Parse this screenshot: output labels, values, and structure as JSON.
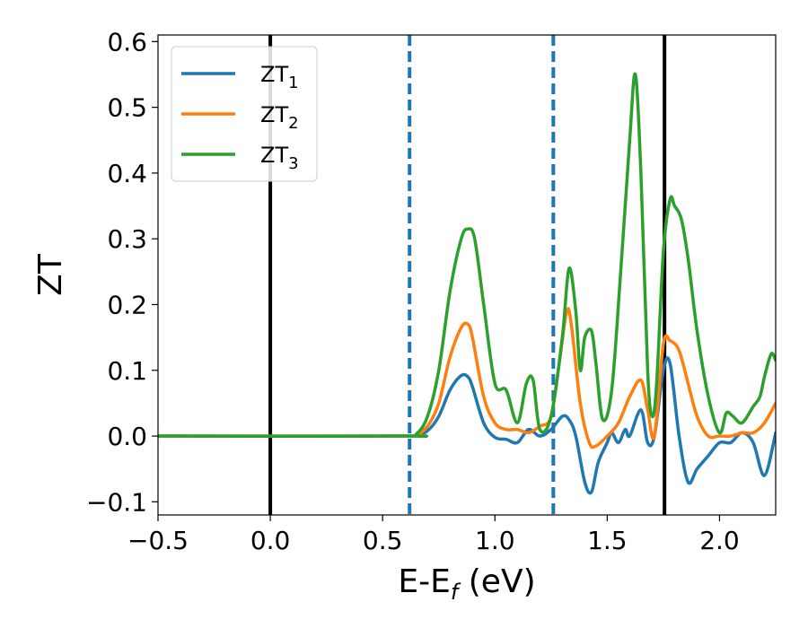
{
  "chart_data": {
    "type": "line",
    "title": "",
    "xlabel": "E-E",
    "xlabel_sub": "f",
    "xlabel_unit": " (eV)",
    "ylabel": "ZT",
    "xlim": [
      -0.5,
      2.25
    ],
    "ylim": [
      -0.12,
      0.61
    ],
    "xticks": [
      -0.5,
      0.0,
      0.5,
      1.0,
      1.5,
      2.0
    ],
    "xtick_labels": [
      "−0.5",
      "0.0",
      "0.5",
      "1.0",
      "1.5",
      "2.0"
    ],
    "yticks": [
      -0.1,
      0.0,
      0.1,
      0.2,
      0.3,
      0.4,
      0.5,
      0.6
    ],
    "ytick_labels": [
      "−0.1",
      "0.0",
      "0.1",
      "0.2",
      "0.3",
      "0.4",
      "0.5",
      "0.6"
    ],
    "grid": false,
    "legend_position": "top-left",
    "vertical_lines": [
      {
        "x": 0.0,
        "style": "solid",
        "color": "#000000"
      },
      {
        "x": 0.62,
        "style": "dashed",
        "color": "#1f77b4"
      },
      {
        "x": 1.26,
        "style": "dashed",
        "color": "#1f77b4"
      },
      {
        "x": 1.755,
        "style": "solid",
        "color": "#000000"
      }
    ],
    "series": [
      {
        "name": "ZT",
        "sub": "1",
        "color": "#1f77b4",
        "x": [
          -0.5,
          0.6,
          0.65,
          0.7,
          0.75,
          0.8,
          0.85,
          0.88,
          0.9,
          0.95,
          1.0,
          1.05,
          1.1,
          1.15,
          1.2,
          1.25,
          1.3,
          1.33,
          1.36,
          1.4,
          1.43,
          1.46,
          1.5,
          1.52,
          1.55,
          1.58,
          1.6,
          1.65,
          1.68,
          1.71,
          1.75,
          1.78,
          1.82,
          1.86,
          1.9,
          1.95,
          2.0,
          2.05,
          2.1,
          2.15,
          2.2,
          2.25
        ],
        "y": [
          0.0,
          0.0,
          0.001,
          0.008,
          0.03,
          0.07,
          0.092,
          0.09,
          0.075,
          0.02,
          -0.002,
          -0.005,
          -0.01,
          0.01,
          0.0,
          0.01,
          0.03,
          0.025,
          0.0,
          -0.07,
          -0.085,
          -0.04,
          -0.01,
          0.005,
          -0.01,
          0.01,
          0.0,
          0.04,
          -0.01,
          0.0,
          0.1,
          0.11,
          0.0,
          -0.07,
          -0.05,
          -0.03,
          -0.01,
          -0.01,
          0.005,
          -0.01,
          -0.06,
          0.005
        ]
      },
      {
        "name": "ZT",
        "sub": "2",
        "color": "#ff7f0e",
        "x": [
          -0.5,
          0.6,
          0.65,
          0.7,
          0.75,
          0.8,
          0.85,
          0.88,
          0.9,
          0.95,
          1.0,
          1.05,
          1.1,
          1.15,
          1.2,
          1.25,
          1.29,
          1.32,
          1.34,
          1.38,
          1.42,
          1.45,
          1.5,
          1.55,
          1.6,
          1.65,
          1.68,
          1.71,
          1.75,
          1.78,
          1.82,
          1.86,
          1.9,
          1.95,
          2.0,
          2.05,
          2.1,
          2.15,
          2.2,
          2.25
        ],
        "y": [
          0.0,
          0.0,
          0.002,
          0.015,
          0.05,
          0.12,
          0.165,
          0.17,
          0.15,
          0.06,
          0.02,
          0.01,
          0.01,
          0.005,
          0.015,
          0.03,
          0.12,
          0.19,
          0.17,
          0.05,
          -0.01,
          -0.015,
          0.0,
          0.02,
          0.06,
          0.085,
          0.04,
          0.0,
          0.14,
          0.145,
          0.13,
          0.08,
          0.03,
          0.0,
          0.0,
          0.0,
          0.005,
          0.005,
          0.02,
          0.05
        ]
      },
      {
        "name": "ZT",
        "sub": "3",
        "color": "#2ca02c",
        "x": [
          -0.5,
          0.6,
          0.65,
          0.7,
          0.75,
          0.8,
          0.85,
          0.88,
          0.91,
          0.95,
          1.0,
          1.05,
          1.1,
          1.14,
          1.17,
          1.2,
          1.25,
          1.3,
          1.33,
          1.36,
          1.38,
          1.4,
          1.43,
          1.45,
          1.48,
          1.52,
          1.56,
          1.6,
          1.625,
          1.65,
          1.68,
          1.7,
          1.72,
          1.75,
          1.78,
          1.8,
          1.83,
          1.86,
          1.9,
          1.95,
          2.0,
          2.03,
          2.06,
          2.1,
          2.15,
          2.18,
          2.2,
          2.23,
          2.25
        ],
        "y": [
          0.0,
          0.0,
          0.003,
          0.03,
          0.1,
          0.22,
          0.3,
          0.315,
          0.3,
          0.2,
          0.08,
          0.07,
          0.02,
          0.08,
          0.085,
          0.01,
          0.03,
          0.15,
          0.255,
          0.19,
          0.1,
          0.15,
          0.16,
          0.11,
          0.025,
          0.07,
          0.25,
          0.45,
          0.55,
          0.4,
          0.1,
          0.03,
          0.08,
          0.28,
          0.36,
          0.35,
          0.33,
          0.27,
          0.16,
          0.06,
          0.005,
          0.035,
          0.03,
          0.02,
          0.045,
          0.06,
          0.09,
          0.125,
          0.115
        ]
      }
    ]
  }
}
